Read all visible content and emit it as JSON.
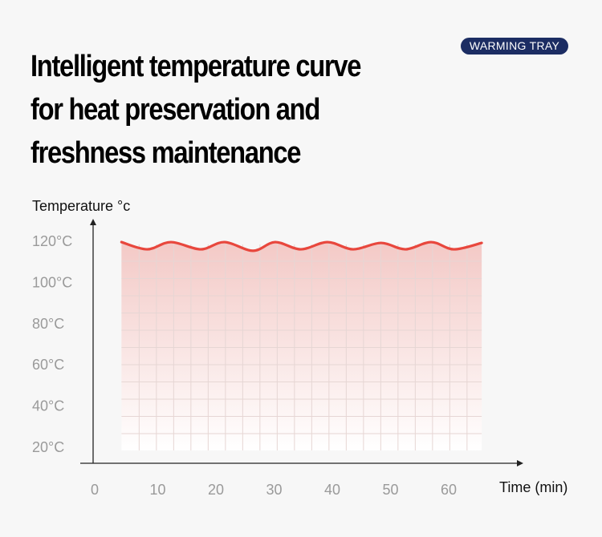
{
  "header": {
    "title_lines": [
      "Intelligent temperature curve",
      "for heat preservation and",
      "freshness maintenance"
    ],
    "badge": "WARMING TRAY"
  },
  "colors": {
    "line": "#e8473d",
    "fill": "#f3c9c6",
    "badge": "#1c2d63"
  },
  "chart_data": {
    "type": "area",
    "ylabel": "Temperature °c",
    "xlabel": "Time (min)",
    "yticks": [
      "120°C",
      "100°C",
      "80°C",
      "60°C",
      "40°C",
      "20°C"
    ],
    "ytick_values": [
      120,
      100,
      80,
      60,
      40,
      20
    ],
    "xticks": [
      "0",
      "10",
      "20",
      "30",
      "40",
      "50",
      "60"
    ],
    "xtick_values": [
      0,
      10,
      20,
      30,
      40,
      50,
      60
    ],
    "xlim": [
      0,
      73
    ],
    "ylim": [
      20,
      120
    ],
    "grid": true,
    "series": [
      {
        "name": "Temperature",
        "x": [
          4.6,
          9,
          13.1,
          18.2,
          22.3,
          27.2,
          31,
          35.4,
          40,
          44.4,
          49.2,
          53.4,
          57.8,
          61.7,
          66.5
        ],
        "values": [
          119.2,
          115.7,
          119.2,
          115.7,
          119.2,
          115,
          119.2,
          115.7,
          119.2,
          115.7,
          118.8,
          115.7,
          119.2,
          115.7,
          118.8
        ]
      }
    ]
  }
}
